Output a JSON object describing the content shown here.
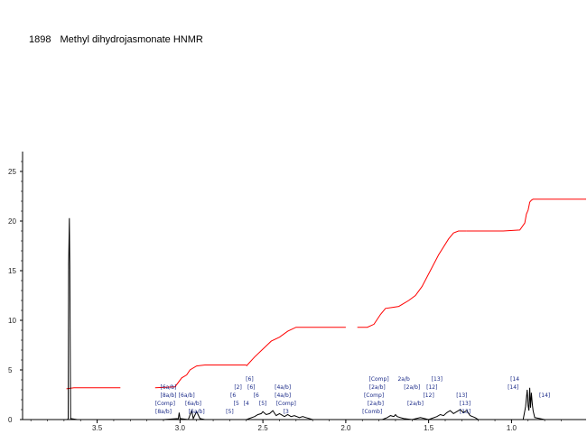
{
  "title": {
    "id": "1898",
    "name": "Methyl dihydrojasmonate HNMR"
  },
  "chart_data": {
    "type": "line",
    "title": "1898    Methyl dihydrojasmonate HNMR",
    "xlabel": "",
    "ylabel": "",
    "xlim": [
      3.95,
      0.55
    ],
    "ylim": [
      0,
      27
    ],
    "x_ticks": [
      3.5,
      3.0,
      2.5,
      2.0,
      1.5,
      1.0
    ],
    "x_tick_labels": [
      "3.5",
      "3.0",
      "2.5",
      "2.0",
      "1.5",
      "1.0"
    ],
    "y_ticks": [
      0,
      5,
      10,
      15,
      20,
      25
    ],
    "y_tick_labels": [
      "0",
      "5",
      "10",
      "15",
      "20",
      "25"
    ],
    "grid": false,
    "series": [
      {
        "kind": "spectrum",
        "color": "#000000",
        "x": [
          3.95,
          3.68,
          3.675,
          3.672,
          3.668,
          3.665,
          3.66,
          3.62,
          3.1,
          3.01,
          3.005,
          3.0,
          2.95,
          2.93,
          2.92,
          2.9,
          2.88,
          2.85,
          2.6,
          2.55,
          2.53,
          2.51,
          2.5,
          2.48,
          2.46,
          2.44,
          2.42,
          2.4,
          2.37,
          2.35,
          2.33,
          2.31,
          2.28,
          2.26,
          2.24,
          2.2,
          2.0,
          1.78,
          1.75,
          1.73,
          1.71,
          1.7,
          1.69,
          1.67,
          1.65,
          1.6,
          1.55,
          1.5,
          1.45,
          1.43,
          1.41,
          1.39,
          1.37,
          1.35,
          1.33,
          1.31,
          1.29,
          1.27,
          1.25,
          1.22,
          1.2,
          0.93,
          0.915,
          0.905,
          0.9,
          0.895,
          0.89,
          0.885,
          0.88,
          0.875,
          0.87,
          0.86,
          0.8,
          0.55
        ],
        "y": [
          0,
          0,
          0.1,
          15.6,
          20.3,
          15.5,
          0.1,
          0,
          0,
          0.1,
          0.7,
          0.1,
          0,
          0.9,
          0.1,
          0.8,
          0.1,
          0,
          0,
          0.3,
          0.5,
          0.6,
          0.8,
          0.5,
          0.6,
          0.9,
          0.4,
          0.6,
          0.3,
          0.5,
          0.3,
          0.4,
          0.2,
          0.3,
          0.2,
          0,
          0,
          0,
          0.2,
          0.4,
          0.3,
          0.5,
          0.3,
          0.2,
          0.1,
          0,
          0.2,
          0,
          0.3,
          0.5,
          0.4,
          0.7,
          0.9,
          0.6,
          0.8,
          1.0,
          0.7,
          0.9,
          0.4,
          0.2,
          0,
          0,
          1.3,
          3.0,
          1.4,
          0.9,
          3.2,
          1.2,
          2.7,
          1.6,
          0.9,
          0.2,
          0,
          0
        ]
      },
      {
        "kind": "integral",
        "color": "#ff0000",
        "segments": [
          {
            "x": [
              3.95,
              3.685
            ],
            "y": [
              0,
              0
            ]
          },
          {
            "x": [
              3.685,
              3.64,
              3.36
            ],
            "y": [
              3.1,
              3.2,
              3.2
            ]
          },
          {
            "x": [
              3.15,
              3.03,
              2.99,
              2.96,
              2.94,
              2.9,
              2.85,
              2.6
            ],
            "y": [
              3.2,
              3.3,
              4.2,
              4.5,
              5.0,
              5.4,
              5.5,
              5.5
            ]
          },
          {
            "x": [
              2.6,
              2.55,
              2.5,
              2.45,
              2.4,
              2.35,
              2.3,
              2.25,
              2.22,
              2.0
            ],
            "y": [
              5.4,
              6.3,
              7.1,
              7.9,
              8.3,
              8.9,
              9.3,
              9.3,
              9.3,
              9.3
            ]
          },
          {
            "x": [
              1.93,
              1.87,
              1.83,
              1.79,
              1.76,
              1.72,
              1.68,
              1.62,
              1.58,
              1.54,
              1.49,
              1.44,
              1.38,
              1.35,
              1.32,
              1.28,
              1.27
            ],
            "y": [
              9.3,
              9.3,
              9.6,
              10.6,
              11.2,
              11.3,
              11.4,
              12.0,
              12.5,
              13.4,
              15.0,
              16.6,
              18.2,
              18.8,
              19.0,
              19.0,
              19.0
            ]
          },
          {
            "x": [
              1.27,
              1.15,
              1.05,
              0.95,
              0.92,
              0.91,
              0.9,
              0.89,
              0.88,
              0.87,
              0.8,
              0.55
            ],
            "y": [
              19.0,
              19.0,
              19.0,
              19.1,
              19.8,
              20.7,
              21.1,
              21.9,
              22.1,
              22.2,
              22.2,
              22.2
            ]
          }
        ]
      }
    ],
    "peak_labels": [
      {
        "text": "[6a/b]",
        "x": 3.07,
        "level": 3
      },
      {
        "text": "[8a/b]",
        "x": 3.07,
        "level": 2
      },
      {
        "text": "[Comp]",
        "x": 3.09,
        "level": 1
      },
      {
        "text": "[8a/b]",
        "x": 3.1,
        "level": 0
      },
      {
        "text": "[6a/b]",
        "x": 2.96,
        "level": 2
      },
      {
        "text": "[6a/b]",
        "x": 2.92,
        "level": 1
      },
      {
        "text": "[6a/b]",
        "x": 2.9,
        "level": 0
      },
      {
        "text": "[6]",
        "x": 2.58,
        "level": 4
      },
      {
        "text": "[2]",
        "x": 2.65,
        "level": 3
      },
      {
        "text": "[6]",
        "x": 2.57,
        "level": 3
      },
      {
        "text": "[6",
        "x": 2.68,
        "level": 2
      },
      {
        "text": "[6",
        "x": 2.54,
        "level": 2
      },
      {
        "text": "[5",
        "x": 2.66,
        "level": 1
      },
      {
        "text": "[4",
        "x": 2.6,
        "level": 1
      },
      {
        "text": "[5]",
        "x": 2.5,
        "level": 1
      },
      {
        "text": "[5]",
        "x": 2.7,
        "level": 0
      },
      {
        "text": "[4a/b]",
        "x": 2.38,
        "level": 3
      },
      {
        "text": "[4a/b]",
        "x": 2.38,
        "level": 2
      },
      {
        "text": "[Comp]",
        "x": 2.36,
        "level": 1
      },
      {
        "text": "[3",
        "x": 2.36,
        "level": 0
      },
      {
        "text": "[Comp]",
        "x": 1.8,
        "level": 4
      },
      {
        "text": "[2a/b]",
        "x": 1.81,
        "level": 3
      },
      {
        "text": "[Comp]",
        "x": 1.83,
        "level": 2
      },
      {
        "text": "[2a/b]",
        "x": 1.82,
        "level": 1
      },
      {
        "text": "[Comb]",
        "x": 1.84,
        "level": 0
      },
      {
        "text": "2a/b",
        "x": 1.65,
        "level": 4
      },
      {
        "text": "[2a/b]",
        "x": 1.6,
        "level": 3
      },
      {
        "text": "[2a/b]",
        "x": 1.58,
        "level": 1
      },
      {
        "text": "[13]",
        "x": 1.45,
        "level": 4
      },
      {
        "text": "[12]",
        "x": 1.48,
        "level": 3
      },
      {
        "text": "[12]",
        "x": 1.5,
        "level": 2
      },
      {
        "text": "[13]",
        "x": 1.3,
        "level": 2
      },
      {
        "text": "[13]",
        "x": 1.28,
        "level": 1
      },
      {
        "text": "[13]",
        "x": 1.28,
        "level": 0
      },
      {
        "text": "[14",
        "x": 0.98,
        "level": 4
      },
      {
        "text": "[14]",
        "x": 0.99,
        "level": 3
      },
      {
        "text": "[14]",
        "x": 0.8,
        "level": 2
      }
    ]
  }
}
